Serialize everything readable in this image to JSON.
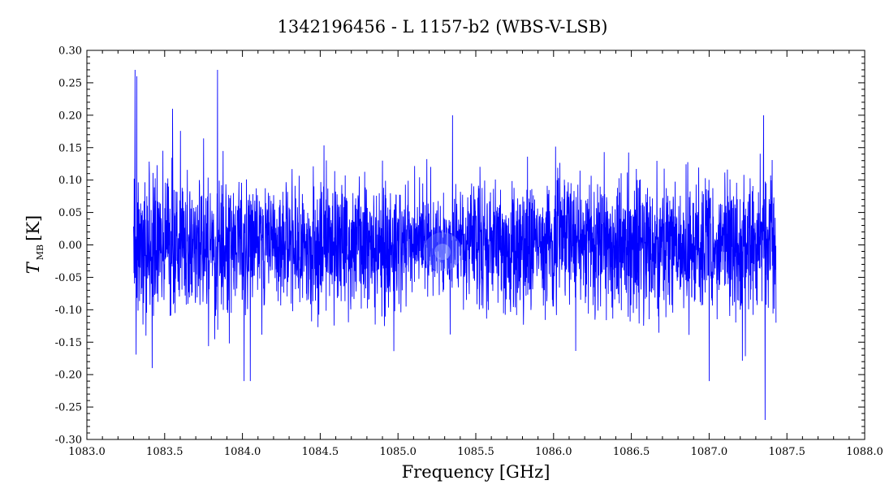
{
  "chart_data": {
    "type": "line",
    "title": "1342196456 - L 1157-b2 (WBS-V-LSB)",
    "xlabel": "Frequency [GHz]",
    "ylabel_main": "T",
    "ylabel_sub": "MB",
    "ylabel_unit": "[K]",
    "xlim": [
      1083.0,
      1088.0
    ],
    "ylim": [
      -0.3,
      0.3
    ],
    "x_ticks": [
      "1083.0",
      "1083.5",
      "1084.0",
      "1084.5",
      "1085.0",
      "1085.5",
      "1086.0",
      "1086.5",
      "1087.0",
      "1087.5",
      "1088.0"
    ],
    "y_ticks": [
      "0.30",
      "0.25",
      "0.20",
      "0.15",
      "0.10",
      "0.05",
      "0.00",
      "-0.05",
      "-0.10",
      "-0.15",
      "-0.20",
      "-0.25",
      "-0.30"
    ],
    "series_color": "#0000ff",
    "series": [
      {
        "x_range": [
          1083.3,
          1087.43
        ],
        "noise_rms": 0.05,
        "peaks": [
          {
            "x": 1083.31,
            "y": 0.27
          },
          {
            "x": 1083.32,
            "y": 0.26
          },
          {
            "x": 1083.55,
            "y": 0.21
          },
          {
            "x": 1083.84,
            "y": 0.27
          },
          {
            "x": 1085.35,
            "y": 0.2
          },
          {
            "x": 1087.35,
            "y": 0.2
          },
          {
            "x": 1084.01,
            "y": -0.21
          },
          {
            "x": 1084.05,
            "y": -0.21
          },
          {
            "x": 1087.36,
            "y": -0.27
          },
          {
            "x": 1087.0,
            "y": -0.21
          },
          {
            "x": 1083.42,
            "y": -0.19
          }
        ]
      }
    ]
  }
}
